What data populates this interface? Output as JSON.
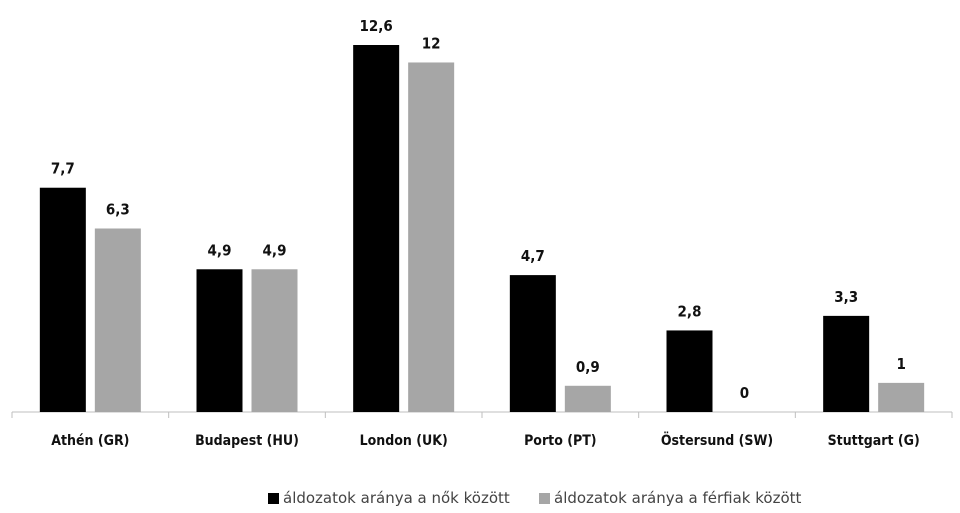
{
  "chart_data": {
    "type": "bar",
    "categories": [
      "Athén (GR)",
      "Budapest (HU)",
      "London (UK)",
      "Porto (PT)",
      "Östersund (SW)",
      "Stuttgart (G)"
    ],
    "series": [
      {
        "name": "áldozatok aránya a nők között",
        "values": [
          7.7,
          4.9,
          12.6,
          4.7,
          2.8,
          3.3
        ],
        "labels": [
          "7,7",
          "4,9",
          "12,6",
          "4,7",
          "2,8",
          "3,3"
        ],
        "color": "#000000"
      },
      {
        "name": "áldozatok aránya a férfiak között",
        "values": [
          6.3,
          4.9,
          12,
          0.9,
          0,
          1
        ],
        "labels": [
          "6,3",
          "4,9",
          "12",
          "0,9",
          "0",
          "1"
        ],
        "color": "#a6a6a6"
      }
    ],
    "ylim": [
      0,
      12.6
    ],
    "grid": false,
    "legend": "bottom"
  }
}
